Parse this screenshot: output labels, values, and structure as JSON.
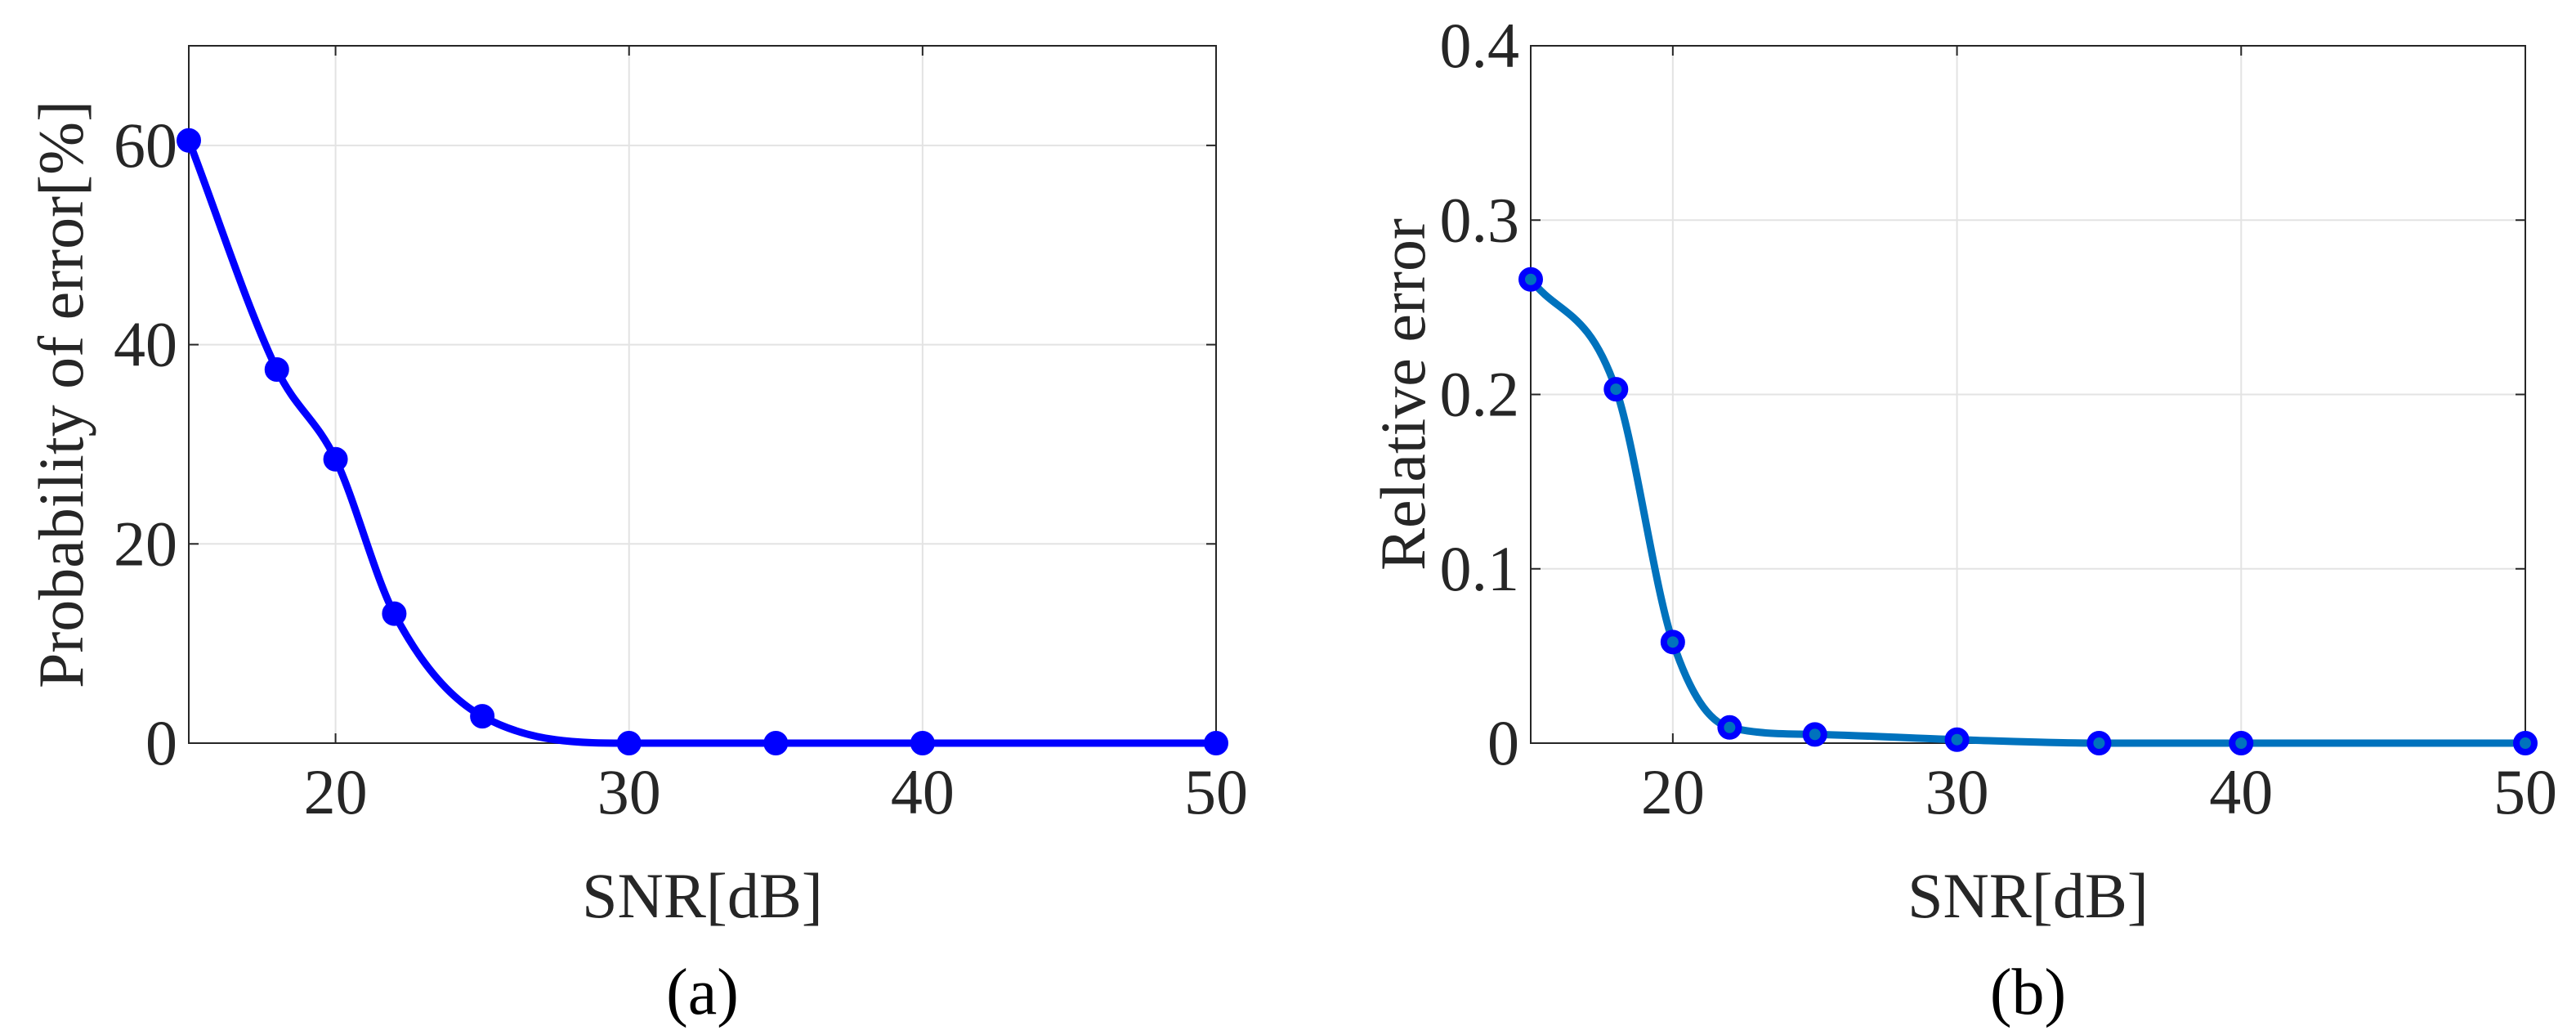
{
  "chart_data": [
    {
      "type": "line",
      "xlabel": "SNR[dB]",
      "ylabel": "Probability of error[%]",
      "caption": "(a)",
      "x": [
        15,
        18,
        20,
        22,
        25,
        30,
        35,
        40,
        50
      ],
      "series": [
        {
          "color": "#0000ff",
          "marker_color": "#0000ff",
          "values": [
            60.5,
            37.5,
            28.5,
            13,
            2.7,
            0,
            0,
            0,
            0
          ]
        }
      ],
      "xlim": [
        15,
        50
      ],
      "xticks": [
        20,
        30,
        40,
        50
      ],
      "ylim": [
        0,
        70
      ],
      "yticks": [
        0,
        20,
        40,
        60
      ],
      "grid": true
    },
    {
      "type": "line",
      "xlabel": "SNR[dB]",
      "ylabel": "Relative error",
      "caption": "(b)",
      "x": [
        15,
        18,
        20,
        22,
        25,
        30,
        35,
        40,
        50
      ],
      "series": [
        {
          "color": "#0072bd",
          "marker_color": "#0000ff",
          "values": [
            0.266,
            0.203,
            0.058,
            0.009,
            0.005,
            0.002,
            0,
            0,
            0
          ]
        }
      ],
      "xlim": [
        15,
        50
      ],
      "xticks": [
        20,
        30,
        40,
        50
      ],
      "ylim": [
        0,
        0.4
      ],
      "yticks": [
        0,
        0.1,
        0.2,
        0.3,
        0.4
      ],
      "grid": true
    }
  ]
}
